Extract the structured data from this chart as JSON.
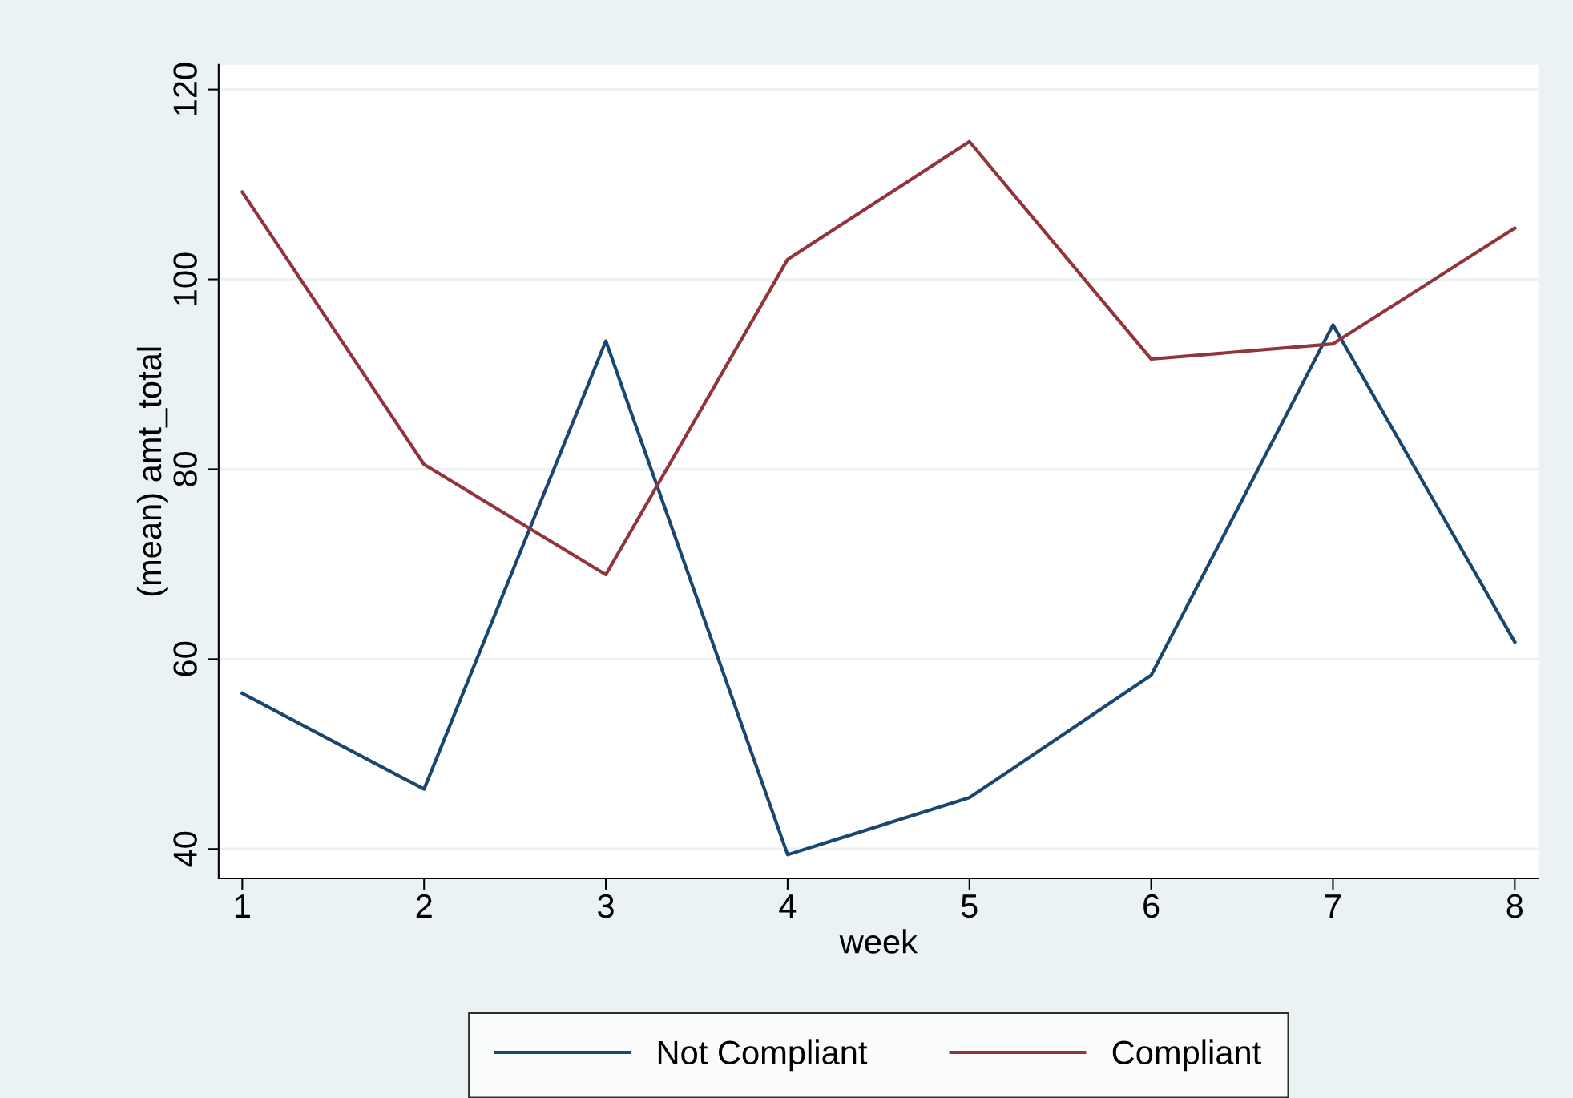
{
  "chart_data": {
    "type": "line",
    "xlabel": "week",
    "ylabel": "(mean) amt_total",
    "x": [
      1,
      2,
      3,
      4,
      5,
      6,
      7,
      8
    ],
    "series": [
      {
        "name": "Not Compliant",
        "color": "#1a476f",
        "values": [
          56.4,
          46.3,
          93.5,
          39.4,
          45.4,
          58.3,
          95.2,
          61.8
        ]
      },
      {
        "name": "Compliant",
        "color": "#90353b",
        "values": [
          109.2,
          80.5,
          68.9,
          102.1,
          114.5,
          91.6,
          93.2,
          105.4
        ]
      }
    ],
    "xlim": [
      0.87,
      8.13
    ],
    "ylim": [
      36.9,
      122.6
    ],
    "xticks": [
      1,
      2,
      3,
      4,
      5,
      6,
      7,
      8
    ],
    "yticks": [
      40,
      60,
      80,
      100,
      120
    ],
    "grid": "y",
    "legend": "bottom",
    "marker": "none",
    "line_style": "solid"
  }
}
